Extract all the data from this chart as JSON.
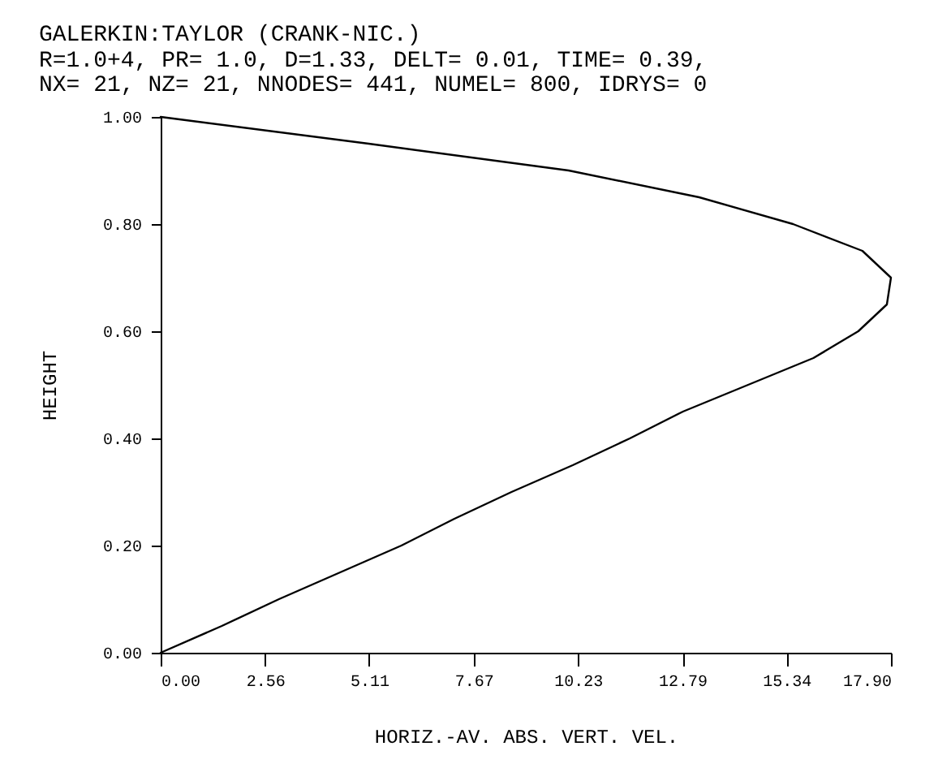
{
  "chart_data": {
    "type": "line",
    "title": "GALERKIN:TAYLOR (CRANK-NIC.)",
    "subtitle": "R=1.0+4, PR= 1.0, D=1.33, DELT= 0.01, TIME= 0.39,\n NX= 21, NZ= 21, NNODES= 441, NUMEL= 800, IDRYS= 0",
    "xlabel": "HORIZ.-AV. ABS. VERT. VEL.",
    "ylabel": "HEIGHT",
    "x": [
      0,
      1.5,
      2.9,
      4.4,
      5.9,
      7.2,
      8.6,
      10.1,
      11.5,
      12.8,
      14.4,
      16.0,
      17.1,
      17.8,
      17.9,
      17.2,
      15.5,
      13.2,
      10.0,
      5.1,
      0
    ],
    "series": [
      {
        "color": "#000000",
        "values": [
          0,
          0.05,
          0.1,
          0.15,
          0.2,
          0.25,
          0.3,
          0.35,
          0.4,
          0.45,
          0.5,
          0.55,
          0.6,
          0.65,
          0.7,
          0.75,
          0.8,
          0.85,
          0.9,
          0.95,
          1.0
        ]
      }
    ],
    "xlim": [
      0,
      17.9
    ],
    "xticks": [
      {
        "value": 0,
        "label": "0.00"
      },
      {
        "value": 2.56,
        "label": "2.56"
      },
      {
        "value": 5.11,
        "label": "5.11"
      },
      {
        "value": 7.67,
        "label": "7.67"
      },
      {
        "value": 10.23,
        "label": "10.23"
      },
      {
        "value": 12.79,
        "label": "12.79"
      },
      {
        "value": 15.34,
        "label": "15.34"
      },
      {
        "value": 17.9,
        "label": "17.90"
      }
    ],
    "ylim": [
      0,
      1
    ],
    "yticks": [
      {
        "value": 0,
        "label": "0.00"
      },
      {
        "value": 0.2,
        "label": "0.20"
      },
      {
        "value": 0.4,
        "label": "0.40"
      },
      {
        "value": 0.6,
        "label": "0.60"
      },
      {
        "value": 0.8,
        "label": "0.80"
      },
      {
        "value": 1,
        "label": "1.00"
      }
    ],
    "grid": false,
    "marker": "none",
    "line_style": "solid"
  }
}
